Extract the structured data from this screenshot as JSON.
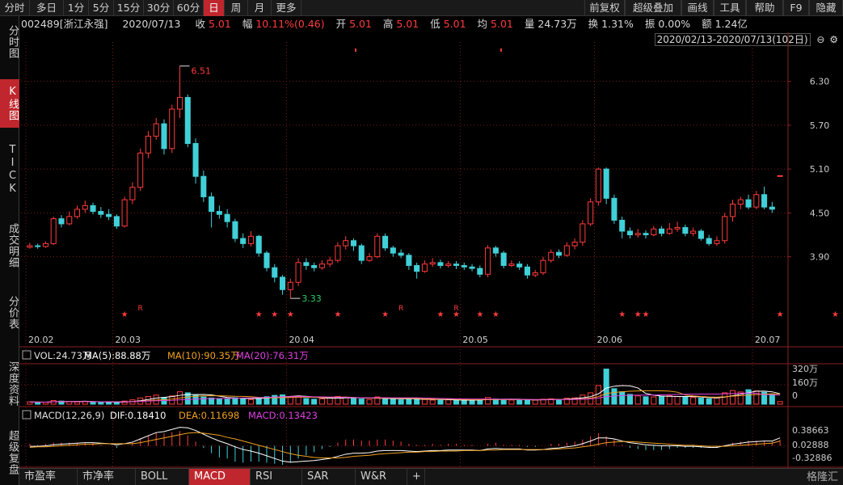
{
  "toolbar": {
    "left": [
      "分时",
      "多日",
      "1分",
      "5分",
      "15分",
      "30分",
      "60分",
      "日",
      "周",
      "月",
      "更多"
    ],
    "active": "日",
    "right": [
      "前复权",
      "超级叠加",
      "画线",
      "工具",
      "帮助",
      "F9",
      "隐藏"
    ]
  },
  "left_rail": [
    "分时图",
    "K线图",
    "TICK",
    "成交明细",
    "分价表",
    "深度资料",
    "超级复盘"
  ],
  "left_rail_active": "K线图",
  "info": {
    "code": "002489[浙江永强]",
    "date": "2020/07/13",
    "close_label": "收",
    "close": "5.01",
    "change_label": "幅",
    "change": "10.11%(0.46)",
    "open_label": "开",
    "open": "5.01",
    "high_label": "高",
    "high": "5.01",
    "low_label": "低",
    "low": "5.01",
    "avg_label": "均",
    "avg": "5.01",
    "volume_label": "量",
    "volume": "24.73万",
    "turnover_label": "换",
    "turnover": "1.31%",
    "amplitude_label": "振",
    "amplitude": "0.00%",
    "amount_label": "额",
    "amount": "1.24亿"
  },
  "range": "2020/02/13-2020/07/13(102日)",
  "bottom_tabs": [
    "市盈率",
    "市净率",
    "BOLL",
    "MACD",
    "RSI",
    "SAR",
    "W&R",
    "+"
  ],
  "bottom_active": "MACD",
  "logo": "格隆汇",
  "colors": {
    "up": "#ff3b3b",
    "down": "#40d0d8",
    "ma5": "#ffffff",
    "ma10": "#f0a020",
    "ma20": "#e040e0",
    "grid": "#7a1a1a"
  },
  "chart_data": {
    "type": "candlestick",
    "price_axis": {
      "ticks": [
        3.9,
        4.5,
        5.1,
        5.7,
        6.3
      ],
      "ylim": [
        2.9,
        6.75
      ]
    },
    "date_labels": [
      {
        "label": "20.02",
        "index": 0
      },
      {
        "label": "20.03",
        "index": 11
      },
      {
        "label": "20.04",
        "index": 33
      },
      {
        "label": "20.05",
        "index": 55
      },
      {
        "label": "20.06",
        "index": 72
      },
      {
        "label": "20.07",
        "index": 92
      }
    ],
    "annotations": [
      {
        "label": "6.51",
        "index": 19,
        "value": 6.51
      },
      {
        "label": "3.33",
        "index": 33,
        "value": 3.33
      }
    ],
    "markers_star": [
      12,
      29,
      31,
      33,
      39,
      45,
      52,
      54,
      57,
      59,
      75,
      77,
      78,
      95,
      102
    ],
    "markers_R": [
      14,
      47,
      54
    ],
    "candles": [
      [
        4.03,
        4.05,
        4.09,
        4.01
      ],
      [
        4.05,
        4.04,
        4.08,
        4.01
      ],
      [
        4.04,
        4.08,
        4.11,
        4.02
      ],
      [
        4.08,
        4.42,
        4.45,
        4.06
      ],
      [
        4.42,
        4.35,
        4.47,
        4.3
      ],
      [
        4.35,
        4.45,
        4.52,
        4.33
      ],
      [
        4.45,
        4.55,
        4.6,
        4.42
      ],
      [
        4.55,
        4.6,
        4.67,
        4.5
      ],
      [
        4.6,
        4.52,
        4.64,
        4.48
      ],
      [
        4.52,
        4.48,
        4.58,
        4.43
      ],
      [
        4.48,
        4.45,
        4.55,
        4.4
      ],
      [
        4.45,
        4.32,
        4.48,
        4.28
      ],
      [
        4.32,
        4.68,
        4.72,
        4.3
      ],
      [
        4.68,
        4.85,
        4.92,
        4.62
      ],
      [
        4.85,
        5.32,
        5.38,
        4.8
      ],
      [
        5.32,
        5.55,
        5.62,
        5.25
      ],
      [
        5.55,
        5.72,
        5.8,
        5.5
      ],
      [
        5.72,
        5.38,
        5.78,
        5.3
      ],
      [
        5.38,
        5.92,
        5.98,
        5.32
      ],
      [
        5.92,
        6.08,
        6.51,
        5.8
      ],
      [
        6.08,
        5.45,
        6.12,
        5.4
      ],
      [
        5.45,
        5.0,
        5.52,
        4.9
      ],
      [
        5.0,
        4.72,
        5.08,
        4.65
      ],
      [
        4.72,
        4.52,
        4.78,
        4.3
      ],
      [
        4.52,
        4.48,
        4.6,
        4.42
      ],
      [
        4.48,
        4.38,
        4.55,
        4.3
      ],
      [
        4.38,
        4.15,
        4.42,
        4.1
      ],
      [
        4.15,
        4.08,
        4.22,
        4.02
      ],
      [
        4.08,
        4.18,
        4.25,
        4.04
      ],
      [
        4.18,
        3.95,
        4.2,
        3.9
      ],
      [
        3.95,
        3.75,
        3.98,
        3.7
      ],
      [
        3.75,
        3.62,
        3.8,
        3.55
      ],
      [
        3.62,
        3.45,
        3.65,
        3.38
      ],
      [
        3.45,
        3.55,
        3.6,
        3.33
      ],
      [
        3.55,
        3.82,
        3.88,
        3.5
      ],
      [
        3.82,
        3.78,
        3.88,
        3.72
      ],
      [
        3.78,
        3.75,
        3.82,
        3.7
      ],
      [
        3.75,
        3.8,
        3.85,
        3.72
      ],
      [
        3.8,
        3.85,
        3.9,
        3.76
      ],
      [
        3.85,
        4.05,
        4.1,
        3.82
      ],
      [
        4.05,
        4.12,
        4.18,
        4.0
      ],
      [
        4.12,
        4.05,
        4.15,
        3.98
      ],
      [
        4.05,
        3.85,
        4.08,
        3.8
      ],
      [
        3.85,
        3.9,
        3.95,
        3.83
      ],
      [
        3.9,
        4.18,
        4.22,
        3.88
      ],
      [
        4.18,
        4.02,
        4.22,
        3.98
      ],
      [
        4.02,
        3.95,
        4.05,
        3.9
      ],
      [
        3.95,
        3.92,
        4.0,
        3.88
      ],
      [
        3.92,
        3.78,
        3.95,
        3.72
      ],
      [
        3.78,
        3.7,
        3.82,
        3.6
      ],
      [
        3.7,
        3.8,
        3.85,
        3.68
      ],
      [
        3.8,
        3.82,
        3.88,
        3.76
      ],
      [
        3.82,
        3.78,
        3.86,
        3.74
      ],
      [
        3.78,
        3.8,
        3.84,
        3.75
      ],
      [
        3.8,
        3.78,
        3.84,
        3.73
      ],
      [
        3.78,
        3.76,
        3.82,
        3.72
      ],
      [
        3.76,
        3.74,
        3.8,
        3.7
      ],
      [
        3.74,
        3.66,
        3.78,
        3.62
      ],
      [
        3.66,
        4.02,
        4.06,
        3.62
      ],
      [
        4.02,
        3.95,
        4.05,
        3.9
      ],
      [
        3.95,
        3.78,
        3.98,
        3.74
      ],
      [
        3.78,
        3.8,
        3.85,
        3.76
      ],
      [
        3.8,
        3.76,
        3.84,
        3.72
      ],
      [
        3.76,
        3.65,
        3.8,
        3.6
      ],
      [
        3.65,
        3.68,
        3.72,
        3.62
      ],
      [
        3.68,
        3.85,
        3.9,
        3.65
      ],
      [
        3.85,
        3.96,
        4.0,
        3.82
      ],
      [
        3.96,
        3.92,
        4.0,
        3.88
      ],
      [
        3.92,
        4.05,
        4.1,
        3.9
      ],
      [
        4.05,
        4.1,
        4.15,
        4.0
      ],
      [
        4.1,
        4.35,
        4.4,
        4.05
      ],
      [
        4.35,
        4.65,
        4.7,
        4.32
      ],
      [
        4.65,
        5.1,
        5.12,
        4.6
      ],
      [
        5.1,
        4.7,
        5.12,
        4.62
      ],
      [
        4.7,
        4.4,
        4.75,
        4.35
      ],
      [
        4.4,
        4.25,
        4.45,
        4.15
      ],
      [
        4.25,
        4.2,
        4.3,
        4.15
      ],
      [
        4.2,
        4.22,
        4.28,
        4.16
      ],
      [
        4.22,
        4.2,
        4.26,
        4.15
      ],
      [
        4.2,
        4.28,
        4.32,
        4.18
      ],
      [
        4.28,
        4.22,
        4.32,
        4.18
      ],
      [
        4.22,
        4.28,
        4.36,
        4.2
      ],
      [
        4.28,
        4.3,
        4.38,
        4.24
      ],
      [
        4.3,
        4.22,
        4.34,
        4.18
      ],
      [
        4.22,
        4.25,
        4.3,
        4.18
      ],
      [
        4.25,
        4.15,
        4.28,
        4.12
      ],
      [
        4.15,
        4.08,
        4.2,
        4.05
      ],
      [
        4.08,
        4.12,
        4.18,
        4.05
      ],
      [
        4.12,
        4.45,
        4.5,
        4.08
      ],
      [
        4.45,
        4.62,
        4.68,
        4.38
      ],
      [
        4.62,
        4.68,
        4.72,
        4.55
      ],
      [
        4.68,
        4.58,
        4.75,
        4.55
      ],
      [
        4.58,
        4.75,
        4.8,
        4.55
      ],
      [
        4.75,
        4.58,
        4.86,
        4.55
      ],
      [
        4.58,
        4.55,
        4.65,
        4.5
      ],
      [
        5.01,
        5.01,
        5.01,
        5.01
      ]
    ],
    "volume": {
      "label": "VOL:24.73万",
      "ma5": "MA(5):88.88万",
      "ma10": "MA(10):90.35万",
      "ma20": "MA(20):76.31万",
      "ticks": [
        "320万",
        "160万",
        "0"
      ],
      "ymax": 360,
      "values": [
        22,
        20,
        18,
        35,
        30,
        25,
        22,
        28,
        20,
        18,
        16,
        20,
        30,
        42,
        60,
        75,
        88,
        65,
        80,
        120,
        110,
        90,
        70,
        60,
        55,
        50,
        62,
        58,
        45,
        60,
        72,
        85,
        90,
        70,
        80,
        55,
        48,
        52,
        60,
        75,
        68,
        55,
        50,
        45,
        70,
        55,
        48,
        42,
        50,
        55,
        46,
        40,
        38,
        42,
        40,
        38,
        36,
        44,
        65,
        50,
        45,
        40,
        38,
        44,
        40,
        48,
        52,
        46,
        58,
        62,
        88,
        110,
        180,
        340,
        150,
        120,
        95,
        80,
        72,
        70,
        76,
        82,
        74,
        70,
        64,
        58,
        52,
        60,
        110,
        132,
        118,
        140,
        128,
        115,
        98,
        25
      ]
    },
    "macd": {
      "label": "MACD(12,26,9)",
      "dif": "DIF:0.18410",
      "dea": "DEA:0.11698",
      "macd": "MACD:0.13423",
      "ticks": [
        "0.38663",
        "0.02888",
        "-0.32886"
      ],
      "range": [
        -0.33,
        0.39
      ],
      "dif_series": [
        0.02,
        0.02,
        0.03,
        0.05,
        0.06,
        0.07,
        0.08,
        0.09,
        0.09,
        0.08,
        0.07,
        0.05,
        0.07,
        0.1,
        0.16,
        0.22,
        0.28,
        0.3,
        0.34,
        0.38,
        0.37,
        0.32,
        0.25,
        0.18,
        0.12,
        0.07,
        0.01,
        -0.04,
        -0.07,
        -0.11,
        -0.16,
        -0.21,
        -0.26,
        -0.28,
        -0.27,
        -0.26,
        -0.25,
        -0.23,
        -0.21,
        -0.17,
        -0.13,
        -0.11,
        -0.11,
        -0.1,
        -0.07,
        -0.06,
        -0.06,
        -0.06,
        -0.07,
        -0.08,
        -0.07,
        -0.06,
        -0.06,
        -0.05,
        -0.05,
        -0.05,
        -0.05,
        -0.06,
        -0.03,
        -0.02,
        -0.03,
        -0.03,
        -0.03,
        -0.05,
        -0.05,
        -0.04,
        -0.02,
        -0.01,
        0.01,
        0.03,
        0.07,
        0.12,
        0.18,
        0.18,
        0.16,
        0.12,
        0.09,
        0.07,
        0.05,
        0.04,
        0.03,
        0.03,
        0.03,
        0.02,
        0.02,
        0.01,
        0.0,
        0.0,
        0.03,
        0.06,
        0.08,
        0.1,
        0.11,
        0.12,
        0.12,
        0.18
      ],
      "dea_series": [
        0.0,
        0.01,
        0.01,
        0.02,
        0.03,
        0.04,
        0.05,
        0.06,
        0.06,
        0.07,
        0.07,
        0.07,
        0.07,
        0.07,
        0.09,
        0.12,
        0.15,
        0.18,
        0.21,
        0.24,
        0.27,
        0.28,
        0.27,
        0.25,
        0.23,
        0.19,
        0.16,
        0.12,
        0.08,
        0.04,
        0.0,
        -0.04,
        -0.08,
        -0.12,
        -0.15,
        -0.17,
        -0.19,
        -0.2,
        -0.2,
        -0.2,
        -0.19,
        -0.17,
        -0.16,
        -0.15,
        -0.13,
        -0.12,
        -0.11,
        -0.1,
        -0.09,
        -0.09,
        -0.08,
        -0.08,
        -0.07,
        -0.07,
        -0.07,
        -0.06,
        -0.06,
        -0.06,
        -0.05,
        -0.05,
        -0.04,
        -0.04,
        -0.04,
        -0.04,
        -0.04,
        -0.04,
        -0.04,
        -0.03,
        -0.02,
        -0.01,
        0.01,
        0.03,
        0.06,
        0.09,
        0.1,
        0.11,
        0.11,
        0.1,
        0.09,
        0.08,
        0.07,
        0.06,
        0.05,
        0.04,
        0.04,
        0.03,
        0.02,
        0.02,
        0.02,
        0.03,
        0.04,
        0.05,
        0.06,
        0.07,
        0.08,
        0.12
      ]
    }
  }
}
